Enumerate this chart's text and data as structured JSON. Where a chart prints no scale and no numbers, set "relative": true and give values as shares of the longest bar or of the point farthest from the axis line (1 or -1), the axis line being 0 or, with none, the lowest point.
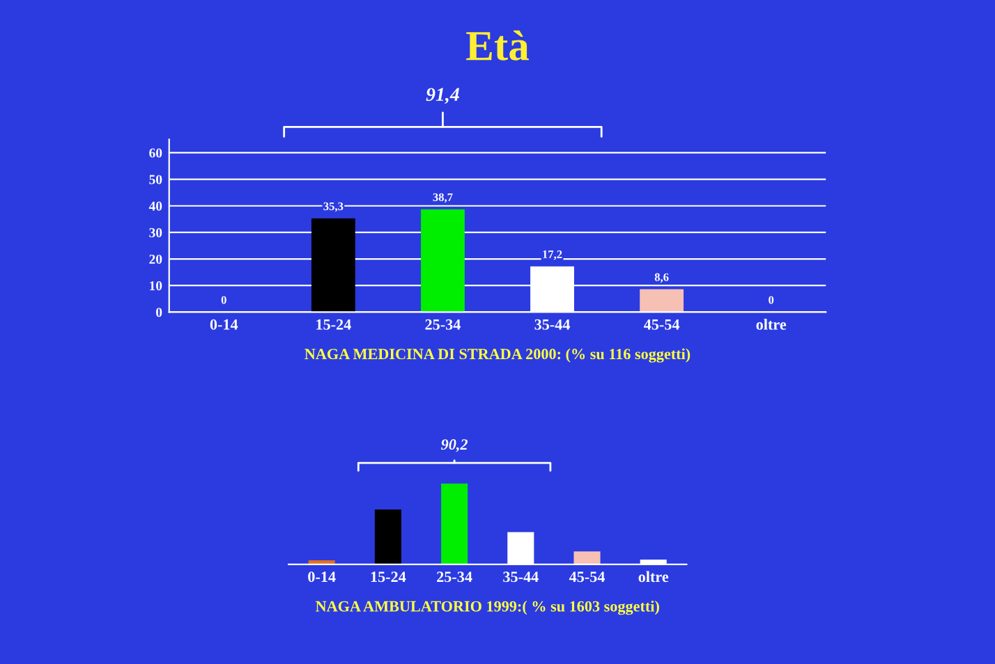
{
  "chart_data": [
    {
      "type": "bar",
      "title": "Età",
      "xlabel": "NAGA MEDICINA DI STRADA 2000: (% su 116 soggetti)",
      "categories": [
        "0-14",
        "15-24",
        "25-34",
        "35-44",
        "45-54",
        "oltre"
      ],
      "values": [
        0,
        35.3,
        38.7,
        17.2,
        8.6,
        0
      ],
      "value_labels": [
        "0",
        "35,3",
        "38,7",
        "17,2",
        "8,6",
        "0"
      ],
      "colors": [
        "#ffffff",
        "#000000",
        "#00ee00",
        "#ffffff",
        "#f6c0b4",
        "#ffffff"
      ],
      "ylim": [
        0,
        65
      ],
      "yticks": [
        0,
        10,
        20,
        30,
        40,
        50,
        60
      ],
      "grid": "y",
      "annotations": [
        "91,4"
      ]
    },
    {
      "type": "bar",
      "xlabel": "NAGA AMBULATORIO 1999:( % su 1603 soggetti)",
      "categories": [
        "0-14",
        "15-24",
        "25-34",
        "35-44",
        "45-54",
        "oltre"
      ],
      "values": [
        0.05,
        0.68,
        1,
        0.4,
        0.16,
        0.06
      ],
      "relative": true,
      "colors": [
        "#e07020",
        "#000000",
        "#00ee00",
        "#ffffff",
        "#f6c0b4",
        "#ffffff"
      ],
      "annotations": [
        "90,2"
      ]
    }
  ]
}
